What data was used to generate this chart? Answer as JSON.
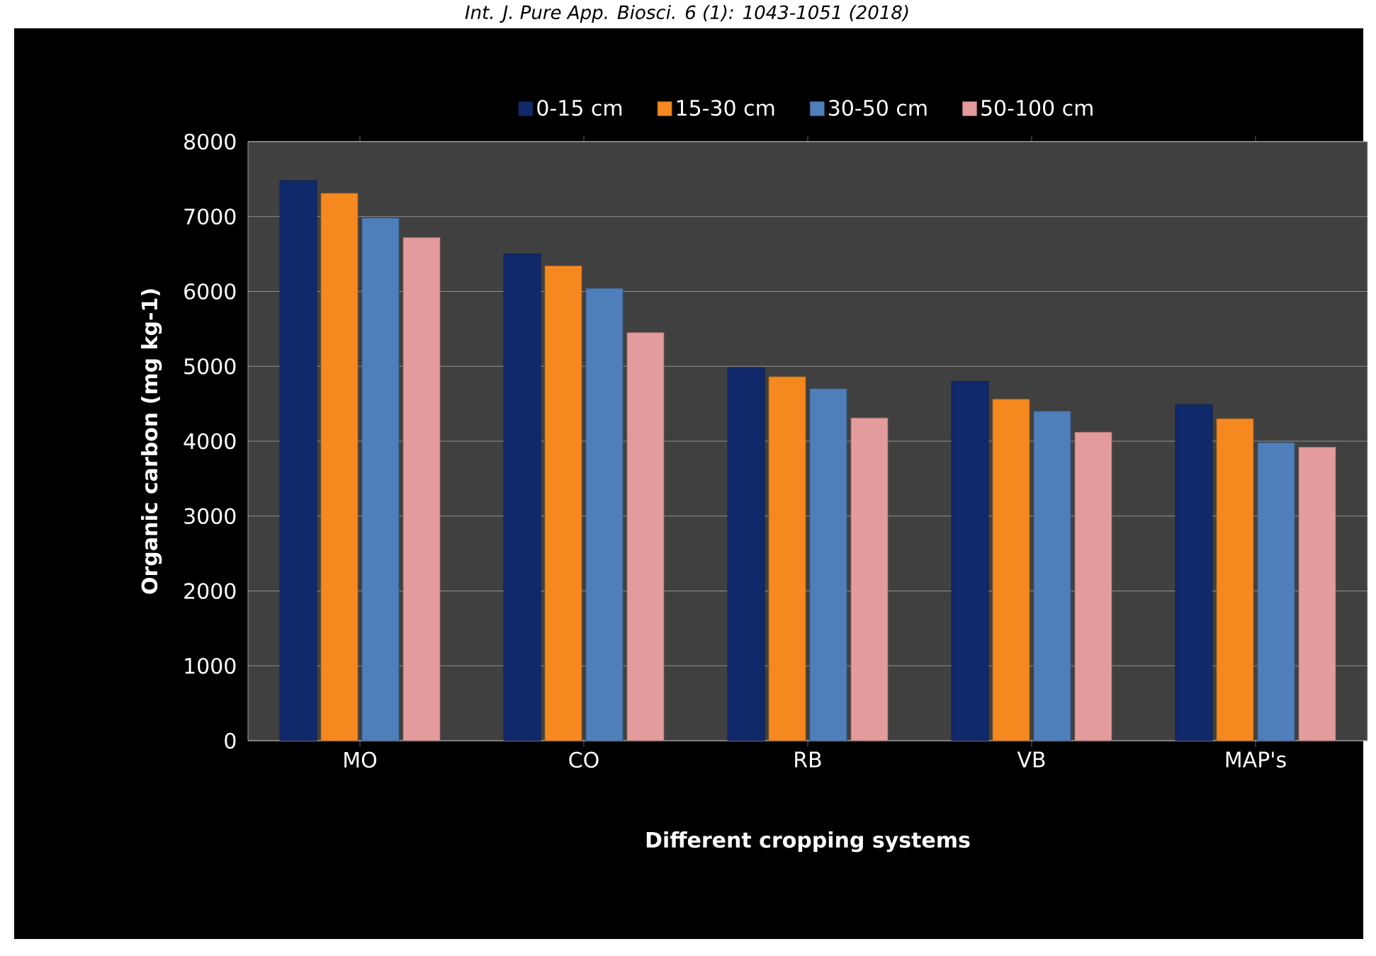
{
  "chart_data": {
    "type": "bar",
    "xlabel": "Different cropping systems",
    "ylabel": "Organic carbon (mg kg-1)",
    "annotations": [
      "Int. J. Pure App. Biosci. 6 (1): 1043-1051 (2018)"
    ],
    "categories": [
      "MO",
      "CO",
      "RB",
      "VB",
      "MAP's"
    ],
    "series": [
      {
        "name": "0-15 cm",
        "color": "#10296b",
        "values": [
          7480,
          6500,
          4980,
          4800,
          4490
        ]
      },
      {
        "name": "15-30 cm",
        "color": "#f5891f",
        "values": [
          7310,
          6340,
          4860,
          4560,
          4300
        ]
      },
      {
        "name": "30-50 cm",
        "color": "#4f7fbb",
        "values": [
          6980,
          6040,
          4700,
          4400,
          3980
        ]
      },
      {
        "name": "50-100 cm",
        "color": "#e39b9b",
        "values": [
          6720,
          5450,
          4310,
          4120,
          3920
        ]
      }
    ],
    "ylim": [
      0,
      8000
    ],
    "yticks": [
      0,
      1000,
      2000,
      3000,
      4000,
      5000,
      6000,
      7000,
      8000
    ],
    "grid": "y",
    "legend": "top"
  }
}
